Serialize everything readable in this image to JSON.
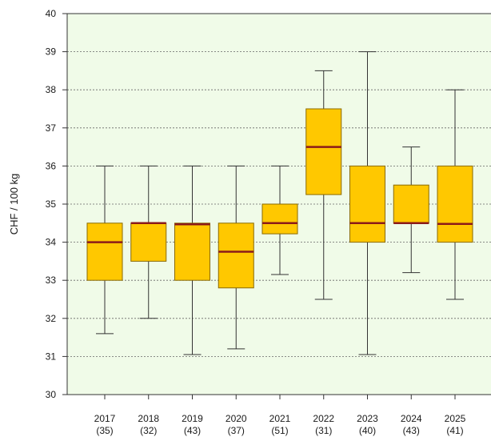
{
  "chart_data": {
    "type": "box",
    "title": "",
    "xlabel": "",
    "ylabel": "CHF / 100 kg",
    "ylim": [
      30,
      40
    ],
    "yticks": [
      30,
      31,
      32,
      33,
      34,
      35,
      36,
      37,
      38,
      39,
      40
    ],
    "grid": "horizontal dotted",
    "categories": [
      "2017",
      "2018",
      "2019",
      "2020",
      "2021",
      "2022",
      "2023",
      "2024",
      "2025"
    ],
    "counts": [
      "(35)",
      "(32)",
      "(43)",
      "(37)",
      "(51)",
      "(31)",
      "(40)",
      "(43)",
      "(41)"
    ],
    "boxes": [
      {
        "min": 31.6,
        "q1": 33.0,
        "median": 34.0,
        "q3": 34.5,
        "max": 36.0
      },
      {
        "min": 32.0,
        "q1": 33.5,
        "median": 34.5,
        "q3": 34.5,
        "max": 36.0
      },
      {
        "min": 31.05,
        "q1": 33.0,
        "median": 34.47,
        "q3": 34.5,
        "max": 36.0
      },
      {
        "min": 31.2,
        "q1": 32.8,
        "median": 33.75,
        "q3": 34.5,
        "max": 36.0
      },
      {
        "min": 33.15,
        "q1": 34.22,
        "median": 34.5,
        "q3": 35.0,
        "max": 36.0
      },
      {
        "min": 32.5,
        "q1": 35.25,
        "median": 36.5,
        "q3": 37.5,
        "max": 38.5
      },
      {
        "min": 31.05,
        "q1": 34.0,
        "median": 34.5,
        "q3": 36.0,
        "max": 39.0
      },
      {
        "min": 33.2,
        "q1": 34.5,
        "median": 34.5,
        "q3": 35.5,
        "max": 36.5
      },
      {
        "min": 32.5,
        "q1": 34.0,
        "median": 34.48,
        "q3": 36.0,
        "max": 38.0
      }
    ],
    "colors": {
      "plot_background": "#f0fbe8",
      "box_fill": "#ffc800",
      "box_border": "#8a6a00",
      "median": "#8b1a1a",
      "whisker": "#333333",
      "grid": "#666666"
    }
  }
}
